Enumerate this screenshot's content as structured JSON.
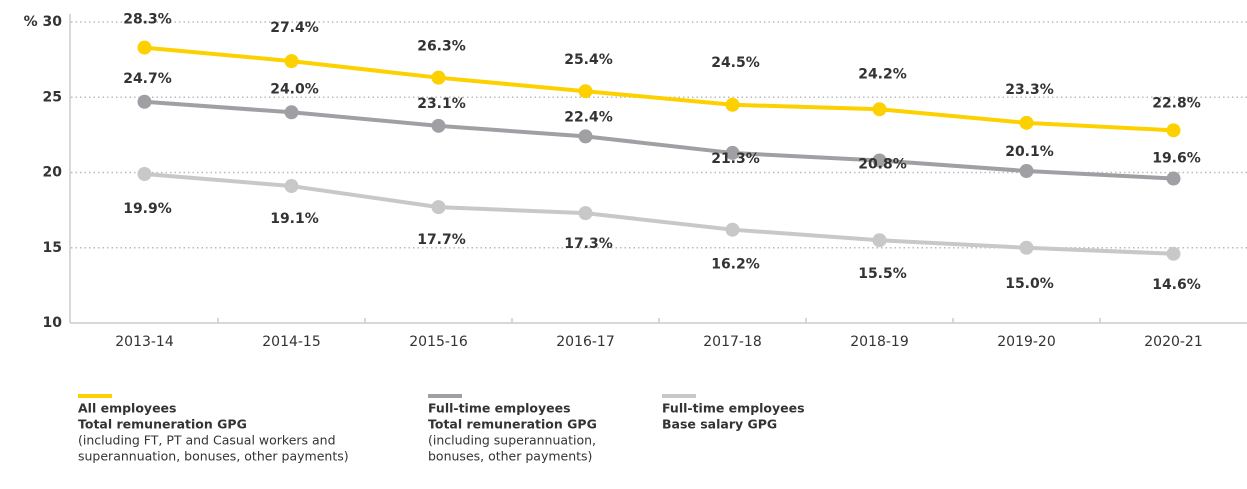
{
  "chart_data": {
    "type": "line",
    "categories": [
      "2013-14",
      "2014-15",
      "2015-16",
      "2016-17",
      "2017-18",
      "2018-19",
      "2019-20",
      "2020-21"
    ],
    "ylim": [
      10,
      30
    ],
    "yticks": [
      10,
      15,
      20,
      25,
      {
        "value": 30,
        "label": "% 30"
      }
    ],
    "grid": true,
    "series": [
      {
        "name": "All employees",
        "measure": "Total remuneration GPG",
        "note": [
          "(including FT, PT and Casual workers and",
          "superannuation, bonuses, other payments)"
        ],
        "color": "#fdd000",
        "values": [
          28.3,
          27.4,
          26.3,
          25.4,
          24.5,
          24.2,
          23.3,
          22.8
        ],
        "value_labels": [
          "28.3%",
          "27.4%",
          "26.3%",
          "25.4%",
          "24.5%",
          "24.2%",
          "23.3%",
          "22.8%"
        ]
      },
      {
        "name": "Full-time employees",
        "measure": "Total remuneration GPG",
        "note": [
          "(including superannuation,",
          "bonuses, other payments)"
        ],
        "color": "#a09fa4",
        "values": [
          24.7,
          24.0,
          23.1,
          22.4,
          21.3,
          20.8,
          20.1,
          19.6
        ],
        "value_labels": [
          "24.7%",
          "24.0%",
          "23.1%",
          "22.4%",
          "21.3%",
          "20.8%",
          "20.1%",
          "19.6%"
        ]
      },
      {
        "name": "Full-time employees",
        "measure": "Base salary GPG",
        "note": [],
        "color": "#c8c8c8",
        "values": [
          19.9,
          19.1,
          17.7,
          17.3,
          16.2,
          15.5,
          15.0,
          14.6
        ],
        "value_labels": [
          "19.9%",
          "19.1%",
          "17.7%",
          "17.3%",
          "16.2%",
          "15.5%",
          "15.0%",
          "14.6%"
        ]
      }
    ]
  }
}
